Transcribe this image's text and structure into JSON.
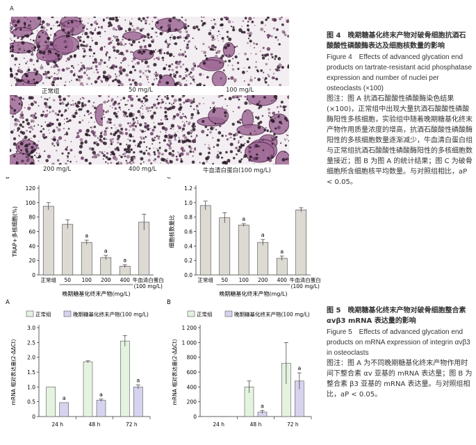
{
  "fig4": {
    "panel_a_letter": "A",
    "micro_labels": [
      "正常组",
      "50 mg/L",
      "100 mg/L",
      "200 mg/L",
      "400 mg/L",
      "牛血清白蛋白(100 mg/L)"
    ],
    "caption": {
      "title_cn": "图 4　晚期糖基化终末产物对破骨细胞抗酒石酸酸性磷酸酶表达及细胞核数量的影响",
      "title_en": "Figure 4　Effects of advanced glycation end products on tartrate-resistant acid phosphatase expression and number of nuclei per osteoclasts (×100)",
      "note": "图注：图 A 抗酒石酸酸性磷酸酶染色结果(×100)，正常组中出现大量抗酒石酸酸性磷酸酶阳性多核细胞，实验组中随着晚期糖基化终末产物作用质量浓度的增高，抗酒石酸酸性磷酸酶阳性的多核细胞数量逐渐减少，牛血清白蛋白组与正常组抗酒石酸酸性磷酸酶阳性的多核细胞数量接近；图 B 为图 A 的统计结果；图 C 为破骨细胞所含细胞核平均数量。与对照组相比，aP < 0.05。"
    }
  },
  "fig5": {
    "caption": {
      "title_cn": "图 5　晚期糖基化终末产物对破骨细胞整合素 αvβ3 mRNA 表达量的影响",
      "title_en": "Figure 5　Effects of advanced glycation end products on mRNA expression of integrin αvβ3 in osteoclasts",
      "note": "图注：图 A 为不同晚期糖基化终末产物作用时间下整合素 αv 亚基的 mRNA 表达量；图 B 为整合素 β3 亚基的 mRNA 表达量。与对照组相比，aP < 0.05。"
    }
  },
  "colors": {
    "bar_gray": "#ddd9d3",
    "normal_green": "#e4f3e0",
    "age_purple": "#d6d3ee",
    "stain": "#6e3f69"
  },
  "chart_data": [
    {
      "type": "bar",
      "panel": "B",
      "ylabel": "TRAP+多核细胞(%)",
      "xlabel": "晚期糖基化终末产物(mg/L)",
      "categories": [
        "正常组",
        "50",
        "100",
        "200",
        "400",
        "牛血清白蛋白\n(100 mg/L)"
      ],
      "values": [
        95,
        70,
        45,
        24,
        12,
        73
      ],
      "errors": [
        5,
        6,
        3,
        3,
        2,
        11
      ],
      "sig": [
        "",
        "",
        "a",
        "a",
        "a",
        ""
      ],
      "yticks": [
        "0",
        "20",
        "40",
        "60",
        "80",
        "100",
        "120"
      ],
      "ylim": [
        0,
        120
      ]
    },
    {
      "type": "bar",
      "panel": "C",
      "ylabel": "细胞核数量比",
      "xlabel": "晚期糖基化终末产物(mg/L)",
      "categories": [
        "正常组",
        "50",
        "100",
        "200",
        "400",
        "牛血清白蛋白\n(100 mg/L)"
      ],
      "values": [
        0.96,
        0.79,
        0.69,
        0.45,
        0.23,
        0.9
      ],
      "errors": [
        0.06,
        0.07,
        0.02,
        0.04,
        0.03,
        0.03
      ],
      "sig": [
        "",
        "",
        "a",
        "a",
        "a",
        ""
      ],
      "yticks": [
        "0.0",
        "0.2",
        "0.4",
        "0.6",
        "0.8",
        "1.0",
        "1.2"
      ],
      "ylim": [
        0,
        1.2
      ]
    },
    {
      "type": "bar",
      "panel": "A",
      "ylabel": "mRNA 相对表达量(2-ΔΔCt)",
      "categories": [
        "24 h",
        "48 h",
        "72 h"
      ],
      "series": [
        {
          "name": "正常组",
          "values": [
            1.0,
            1.85,
            2.55
          ],
          "errors": [
            0,
            0.03,
            0.18
          ],
          "sig": [
            "",
            "",
            ""
          ]
        },
        {
          "name": "晚期糖基化终末产物(100 mg/L)",
          "values": [
            0.47,
            0.55,
            1.0
          ],
          "errors": [
            0,
            0.04,
            0.07
          ],
          "sig": [
            "a",
            "a",
            "a"
          ]
        }
      ],
      "yticks": [
        "0",
        "0.5",
        "1.0",
        "1.5",
        "2.0",
        "2.5",
        "3.0"
      ],
      "ylim": [
        0,
        3.0
      ]
    },
    {
      "type": "bar",
      "panel": "B",
      "ylabel": "mRNA 相对表达量(2-ΔΔCt)",
      "categories": [
        "24 h",
        "48 h",
        "72 h"
      ],
      "series": [
        {
          "name": "正常组",
          "values": [
            1,
            400,
            720
          ],
          "errors": [
            0,
            80,
            280
          ],
          "sig": [
            "",
            "",
            ""
          ]
        },
        {
          "name": "晚期糖基化终末产物(100 mg/L)",
          "values": [
            1,
            60,
            480
          ],
          "errors": [
            0,
            20,
            110
          ],
          "sig": [
            "",
            "a",
            "a"
          ]
        }
      ],
      "yticks": [
        "0",
        "200",
        "400",
        "600",
        "800",
        "1 000",
        "1 200"
      ],
      "ylim": [
        0,
        1200
      ]
    }
  ]
}
